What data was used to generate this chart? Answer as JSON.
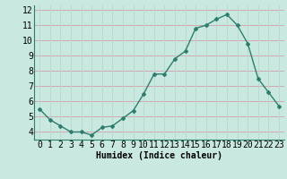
{
  "x": [
    0,
    1,
    2,
    3,
    4,
    5,
    6,
    7,
    8,
    9,
    10,
    11,
    12,
    13,
    14,
    15,
    16,
    17,
    18,
    19,
    20,
    21,
    22,
    23
  ],
  "y": [
    5.5,
    4.8,
    4.4,
    4.0,
    4.0,
    3.8,
    4.3,
    4.4,
    4.9,
    5.4,
    6.5,
    7.8,
    7.8,
    8.8,
    9.3,
    10.8,
    11.0,
    11.4,
    11.7,
    11.0,
    9.8,
    7.5,
    6.6,
    5.7
  ],
  "xlabel": "Humidex (Indice chaleur)",
  "xlim": [
    -0.5,
    23.5
  ],
  "ylim": [
    3.5,
    12.3
  ],
  "yticks": [
    4,
    5,
    6,
    7,
    8,
    9,
    10,
    11,
    12
  ],
  "xticks": [
    0,
    1,
    2,
    3,
    4,
    5,
    6,
    7,
    8,
    9,
    10,
    11,
    12,
    13,
    14,
    15,
    16,
    17,
    18,
    19,
    20,
    21,
    22,
    23
  ],
  "line_color": "#2e7d6e",
  "marker_color": "#2e7d6e",
  "bg_color": "#c8e8e0",
  "grid_color_h": "#d4a8b0",
  "grid_color_v": "#b8d8d0",
  "xlabel_fontsize": 7,
  "tick_fontsize": 7
}
